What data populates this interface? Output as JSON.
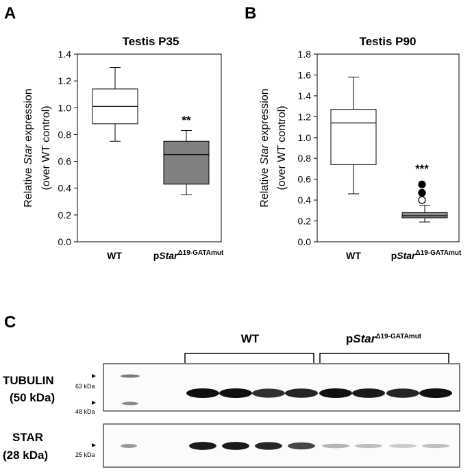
{
  "colors": {
    "box_control": "#ffffff",
    "box_mutant": "#808080",
    "box_mutant_p90": "#8c8c8c",
    "axis": "#000000",
    "blot_band": "#111111"
  },
  "panels": {
    "a": {
      "letter": "A",
      "significance": "**"
    },
    "b": {
      "letter": "B",
      "significance": "***"
    },
    "c": {
      "letter": "C"
    }
  },
  "mutant_label": {
    "prefix": "p",
    "gene": "Star",
    "superscript": "Δ19-GATAmut"
  },
  "chart_data": [
    {
      "type": "box",
      "title": "Testis P35",
      "ylabel": {
        "before": "Relative ",
        "italic": "Star",
        "after": " expression",
        "line2": "(over WT control)"
      },
      "ylim": [
        0,
        1.4
      ],
      "yticks": [
        "0.0",
        "0.2",
        "0.4",
        "0.6",
        "0.8",
        "1.0",
        "1.2",
        "1.4"
      ],
      "categories": [
        "WT",
        "pStar Δ19-GATAmut"
      ],
      "boxes": [
        {
          "category": "WT",
          "whisker_low": 0.75,
          "q1": 0.88,
          "median": 1.01,
          "q3": 1.14,
          "whisker_high": 1.3,
          "outliers": []
        },
        {
          "category": "pStar Δ19-GATAmut",
          "whisker_low": 0.35,
          "q1": 0.43,
          "median": 0.65,
          "q3": 0.75,
          "whisker_high": 0.83,
          "outliers": []
        }
      ],
      "significance": "**"
    },
    {
      "type": "box",
      "title": "Testis P90",
      "ylabel": {
        "before": "Relative ",
        "italic": "Star",
        "after": " expression",
        "line2": "(over WT control)"
      },
      "ylim": [
        0,
        1.8
      ],
      "yticks": [
        "0.0",
        "0.2",
        "0.4",
        "0.6",
        "0.8",
        "1.0",
        "1.2",
        "1.4",
        "1.6",
        "1.8"
      ],
      "categories": [
        "WT",
        "pStar Δ19-GATAmut"
      ],
      "boxes": [
        {
          "category": "WT",
          "whisker_low": 0.46,
          "q1": 0.74,
          "median": 1.14,
          "q3": 1.27,
          "whisker_high": 1.58,
          "outliers": []
        },
        {
          "category": "pStar Δ19-GATAmut",
          "whisker_low": 0.19,
          "q1": 0.23,
          "median": 0.25,
          "q3": 0.28,
          "whisker_high": 0.35,
          "outliers": [
            {
              "value": 0.4,
              "filled": false
            },
            {
              "value": 0.47,
              "filled": true
            },
            {
              "value": 0.55,
              "filled": true
            }
          ]
        }
      ],
      "significance": "***"
    }
  ],
  "blot": {
    "groups": [
      {
        "label": "WT",
        "lanes": 4
      },
      {
        "label": "pStar Δ19-GATAmut",
        "lanes": 4
      }
    ],
    "rows": [
      {
        "protein": "TUBULIN",
        "mw": "(50 kDa)",
        "markers": [
          "63 kDa",
          "48 kDa"
        ],
        "band_intensity": [
          1.0,
          1.0,
          0.85,
          0.9,
          1.0,
          0.95,
          0.9,
          1.0
        ]
      },
      {
        "protein": "STAR",
        "mw": "(28 kDa)",
        "markers": [
          "25 kDa"
        ],
        "band_intensity": [
          0.95,
          0.95,
          0.9,
          0.75,
          0.25,
          0.2,
          0.15,
          0.2
        ]
      }
    ]
  }
}
